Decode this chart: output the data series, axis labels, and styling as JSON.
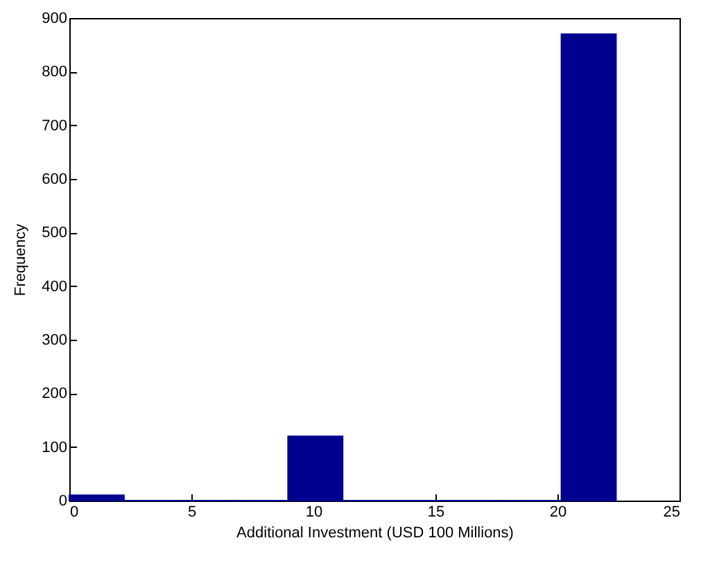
{
  "chart_data": {
    "type": "histogram",
    "xlabel": "Additional Investment (USD 100 Millions)",
    "ylabel": "Frequency",
    "bins": [
      0,
      2.24,
      4.48,
      6.72,
      8.96,
      11.2,
      13.44,
      15.68,
      17.92,
      20.16,
      22.4
    ],
    "values": [
      10,
      0,
      0,
      0,
      120,
      0,
      0,
      0,
      0,
      870
    ],
    "color": "#00008f",
    "xlim": [
      0,
      25
    ],
    "xticks": [
      0,
      5,
      10,
      15,
      20,
      25
    ],
    "ylim": [
      0,
      900
    ],
    "yticks": [
      0,
      100,
      200,
      300,
      400,
      500,
      600,
      700,
      800,
      900
    ],
    "grid": false,
    "legend": false
  }
}
